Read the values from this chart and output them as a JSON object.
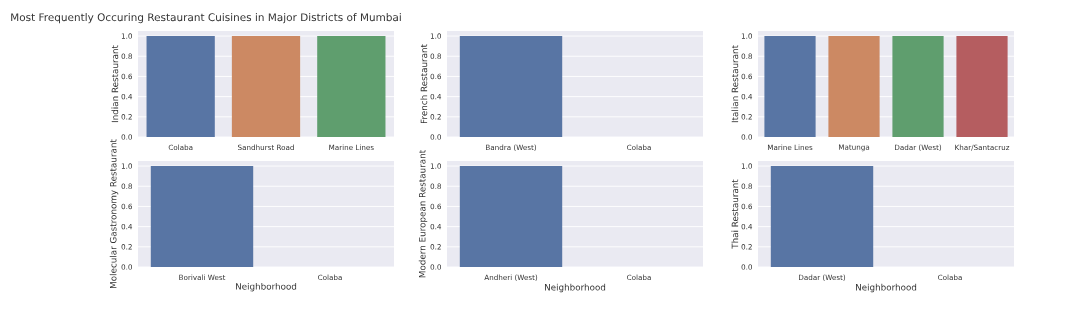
{
  "chart_data": [
    {
      "type": "bar",
      "title": "Most Frequently Occuring Restaurant Cuisines in Major Districts of Mumbai",
      "ylabel": "Indian Restaurant",
      "categories": [
        "Colaba",
        "Sandhurst Road",
        "Marine Lines"
      ],
      "values": [
        1.0,
        1.0,
        1.0
      ],
      "colors": [
        "#5875a4",
        "#cc8963",
        "#5f9e6e"
      ],
      "ylim": [
        0,
        1.05
      ],
      "yticks": [
        {
          "value": 0,
          "label": "0.0"
        },
        {
          "value": 0.2,
          "label": "0.2"
        },
        {
          "value": 0.4,
          "label": "0.4"
        },
        {
          "value": 0.6,
          "label": "0.6"
        },
        {
          "value": 0.8,
          "label": "0.8"
        },
        {
          "value": 1,
          "label": "1.0"
        }
      ],
      "grid": "y"
    },
    {
      "type": "bar",
      "ylabel": "French Restaurant",
      "categories": [
        "Bandra (West)",
        "Colaba"
      ],
      "values": [
        1.0,
        0
      ],
      "colors": [
        "#5875a4",
        "#cc8963"
      ],
      "ylim": [
        0,
        1.05
      ],
      "yticks": [
        {
          "value": 0,
          "label": "0.0"
        },
        {
          "value": 0.2,
          "label": "0.2"
        },
        {
          "value": 0.4,
          "label": "0.4"
        },
        {
          "value": 0.6,
          "label": "0.6"
        },
        {
          "value": 0.8,
          "label": "0.8"
        },
        {
          "value": 1,
          "label": "1.0"
        }
      ],
      "grid": "y"
    },
    {
      "type": "bar",
      "ylabel": "Italian Restaurant",
      "categories": [
        "Marine Lines",
        "Matunga",
        "Dadar (West)",
        "Khar/Santacruz"
      ],
      "values": [
        1.0,
        1.0,
        1.0,
        1.0
      ],
      "colors": [
        "#5875a4",
        "#cc8963",
        "#5f9e6e",
        "#b55d60"
      ],
      "ylim": [
        0,
        1.05
      ],
      "yticks": [
        {
          "value": 0,
          "label": "0.0"
        },
        {
          "value": 0.2,
          "label": "0.2"
        },
        {
          "value": 0.4,
          "label": "0.4"
        },
        {
          "value": 0.6,
          "label": "0.6"
        },
        {
          "value": 0.8,
          "label": "0.8"
        },
        {
          "value": 1,
          "label": "1.0"
        }
      ],
      "grid": "y"
    },
    {
      "type": "bar",
      "xlabel": "Neighborhood",
      "ylabel": "Molecular Gastronomy Restaurant",
      "categories": [
        "Borivali West",
        "Colaba"
      ],
      "values": [
        1.0,
        0
      ],
      "colors": [
        "#5875a4",
        "#cc8963"
      ],
      "ylim": [
        0,
        1.05
      ],
      "yticks": [
        {
          "value": 0,
          "label": "0.0"
        },
        {
          "value": 0.2,
          "label": "0.2"
        },
        {
          "value": 0.4,
          "label": "0.4"
        },
        {
          "value": 0.6,
          "label": "0.6"
        },
        {
          "value": 0.8,
          "label": "0.8"
        },
        {
          "value": 1,
          "label": "1.0"
        }
      ],
      "grid": "y"
    },
    {
      "type": "bar",
      "xlabel": "Neighborhood",
      "ylabel": "Modern European Restaurant",
      "categories": [
        "Andheri (West)",
        "Colaba"
      ],
      "values": [
        1.0,
        0
      ],
      "colors": [
        "#5875a4",
        "#cc8963"
      ],
      "ylim": [
        0,
        1.05
      ],
      "yticks": [
        {
          "value": 0,
          "label": "0.0"
        },
        {
          "value": 0.2,
          "label": "0.2"
        },
        {
          "value": 0.4,
          "label": "0.4"
        },
        {
          "value": 0.6,
          "label": "0.6"
        },
        {
          "value": 0.8,
          "label": "0.8"
        },
        {
          "value": 1,
          "label": "1.0"
        }
      ],
      "grid": "y"
    },
    {
      "type": "bar",
      "xlabel": "Neighborhood",
      "ylabel": "Thai Restaurant",
      "categories": [
        "Dadar (West)",
        "Colaba"
      ],
      "values": [
        1.0,
        0
      ],
      "colors": [
        "#5875a4",
        "#cc8963"
      ],
      "ylim": [
        0,
        1.05
      ],
      "yticks": [
        {
          "value": 0,
          "label": "0.0"
        },
        {
          "value": 0.2,
          "label": "0.2"
        },
        {
          "value": 0.4,
          "label": "0.4"
        },
        {
          "value": 0.6,
          "label": "0.6"
        },
        {
          "value": 0.8,
          "label": "0.8"
        },
        {
          "value": 1,
          "label": "1.0"
        }
      ],
      "grid": "y"
    }
  ]
}
